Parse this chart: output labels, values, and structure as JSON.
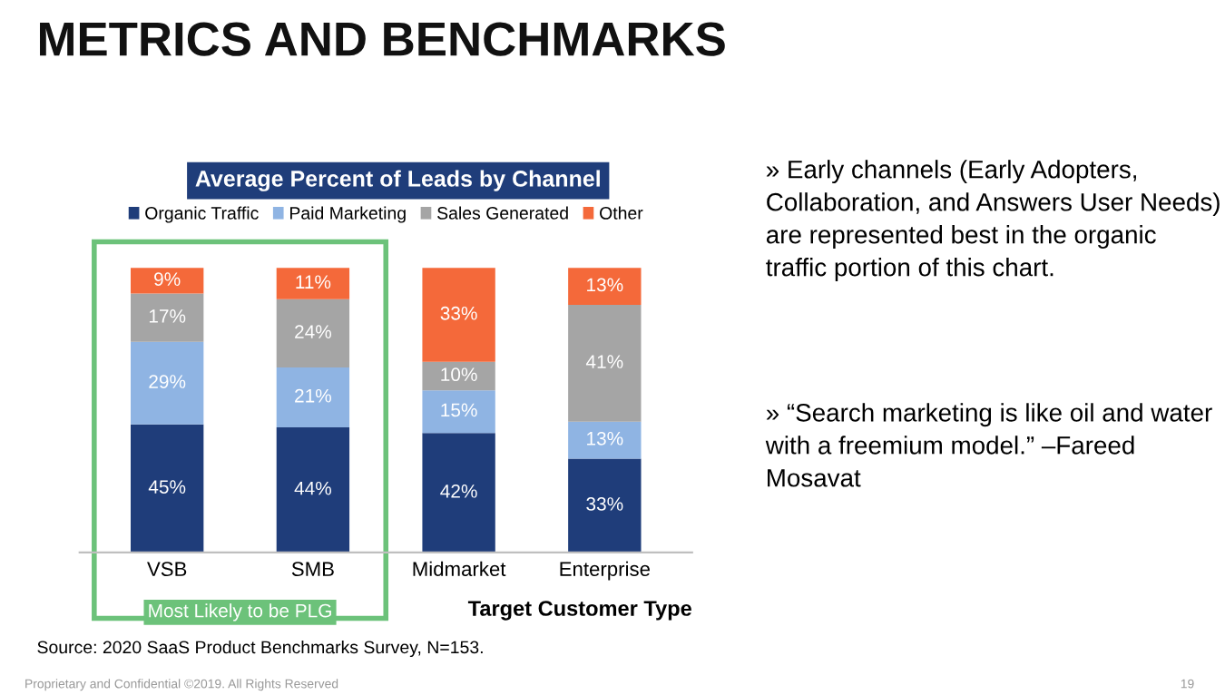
{
  "chart_data": {
    "type": "bar",
    "stacked": true,
    "title": "METRICS AND BENCHMARKS",
    "subtitle": "Average Percent of Leads by Channel",
    "xlabel": "Target Customer Type",
    "categories": [
      "VSB",
      "SMB",
      "Midmarket",
      "Enterprise"
    ],
    "series": [
      {
        "name": "Organic Traffic",
        "color": "#1f3d7a",
        "values": [
          45,
          44,
          42,
          33
        ],
        "value_labels": [
          "45%",
          "44%",
          "42%",
          "33%"
        ]
      },
      {
        "name": "Paid Marketing",
        "color": "#8fb4e3",
        "values": [
          29,
          21,
          15,
          13
        ],
        "value_labels": [
          "29%",
          "21%",
          "15%",
          "13%"
        ]
      },
      {
        "name": "Sales Generated",
        "color": "#a5a5a5",
        "values": [
          17,
          24,
          10,
          41
        ],
        "value_labels": [
          "17%",
          "24%",
          "10%",
          "41%"
        ]
      },
      {
        "name": "Other",
        "color": "#f4693a",
        "values": [
          9,
          11,
          33,
          13
        ],
        "value_labels": [
          "9%",
          "11%",
          "33%",
          "13%"
        ]
      }
    ],
    "legend": "top",
    "grid": false,
    "tick_labels": "x",
    "annotations": [
      "Most Likely to be PLG",
      "» Early channels (Early Adopters, Collaboration, and Answers User Needs) are represented best in the organic traffic portion of this chart.",
      "» “Search marketing is like oil and water with a freemium model.” –Fareed Mosavat",
      "Source: 2020 SaaS Product Benchmarks Survey, N=153.",
      "Proprietary and Confidential ©2019. All Rights Reserved",
      "19"
    ]
  }
}
